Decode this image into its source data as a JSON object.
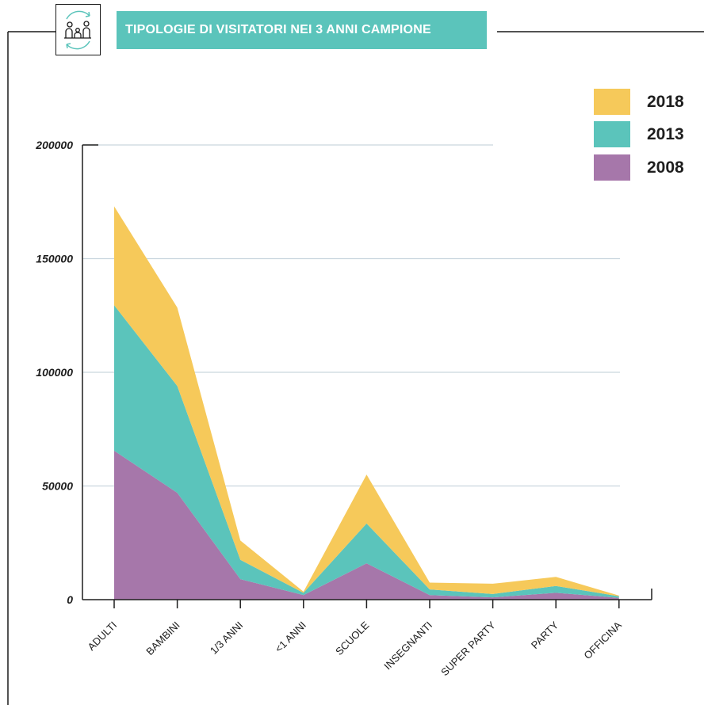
{
  "header": {
    "title": "TIPOLOGIE DI VISITATORI NEI 3 ANNI CAMPIONE",
    "icon": "family-visitors-icon"
  },
  "colors": {
    "2018": "#f6c95a",
    "2013": "#5bc4bb",
    "2008": "#a677aa",
    "grid": "#c9d6de",
    "axis": "#1e1e1e"
  },
  "legend": [
    {
      "label": "2018",
      "color": "#f6c95a"
    },
    {
      "label": "2013",
      "color": "#5bc4bb"
    },
    {
      "label": "2008",
      "color": "#a677aa"
    }
  ],
  "chart_data": {
    "type": "area",
    "stacked": true,
    "categories": [
      "ADULTI",
      "BAMBINI",
      "1/3 ANNI",
      "<1 ANNI",
      "SCUOLE",
      "INSEGNANTI",
      "SUPER PARTY",
      "PARTY",
      "OFFICINA"
    ],
    "series": [
      {
        "name": "2008",
        "values": [
          65500,
          47000,
          9000,
          2000,
          16000,
          2000,
          1000,
          3000,
          800
        ]
      },
      {
        "name": "2013",
        "values": [
          64000,
          47000,
          8500,
          1000,
          17500,
          2500,
          1500,
          3000,
          700
        ]
      },
      {
        "name": "2018",
        "values": [
          43500,
          34500,
          8500,
          500,
          21500,
          3000,
          4500,
          4000,
          300
        ]
      }
    ],
    "yticks": [
      0,
      50000,
      100000,
      150000,
      200000
    ],
    "ylim": [
      0,
      200000
    ],
    "grid": true,
    "legend_position": "top-right"
  }
}
